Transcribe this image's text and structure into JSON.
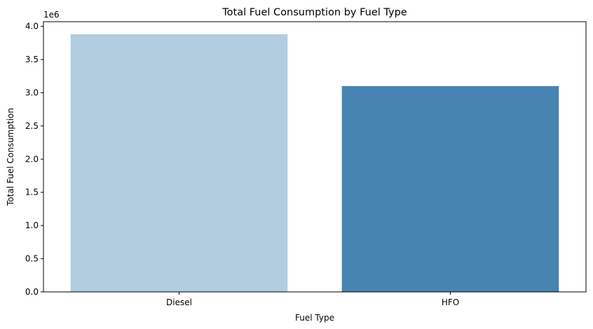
{
  "chart_data": {
    "type": "bar",
    "title": "Total Fuel Consumption by Fuel Type",
    "xlabel": "Fuel Type",
    "ylabel": "Total Fuel Consumption",
    "categories": [
      "Diesel",
      "HFO"
    ],
    "values": [
      3880000,
      3100000
    ],
    "colors": [
      "#b3cde0",
      "#4884b2"
    ],
    "ylim": [
      0,
      4070000
    ],
    "yticks": [
      0,
      500000,
      1000000,
      1500000,
      2000000,
      2500000,
      3000000,
      3500000,
      4000000
    ],
    "ytick_labels": [
      "0.0",
      "0.5",
      "1.0",
      "1.5",
      "2.0",
      "2.5",
      "3.0",
      "3.5",
      "4.0"
    ],
    "y_offset_text": "1e6",
    "grid": false,
    "legend": "none"
  }
}
